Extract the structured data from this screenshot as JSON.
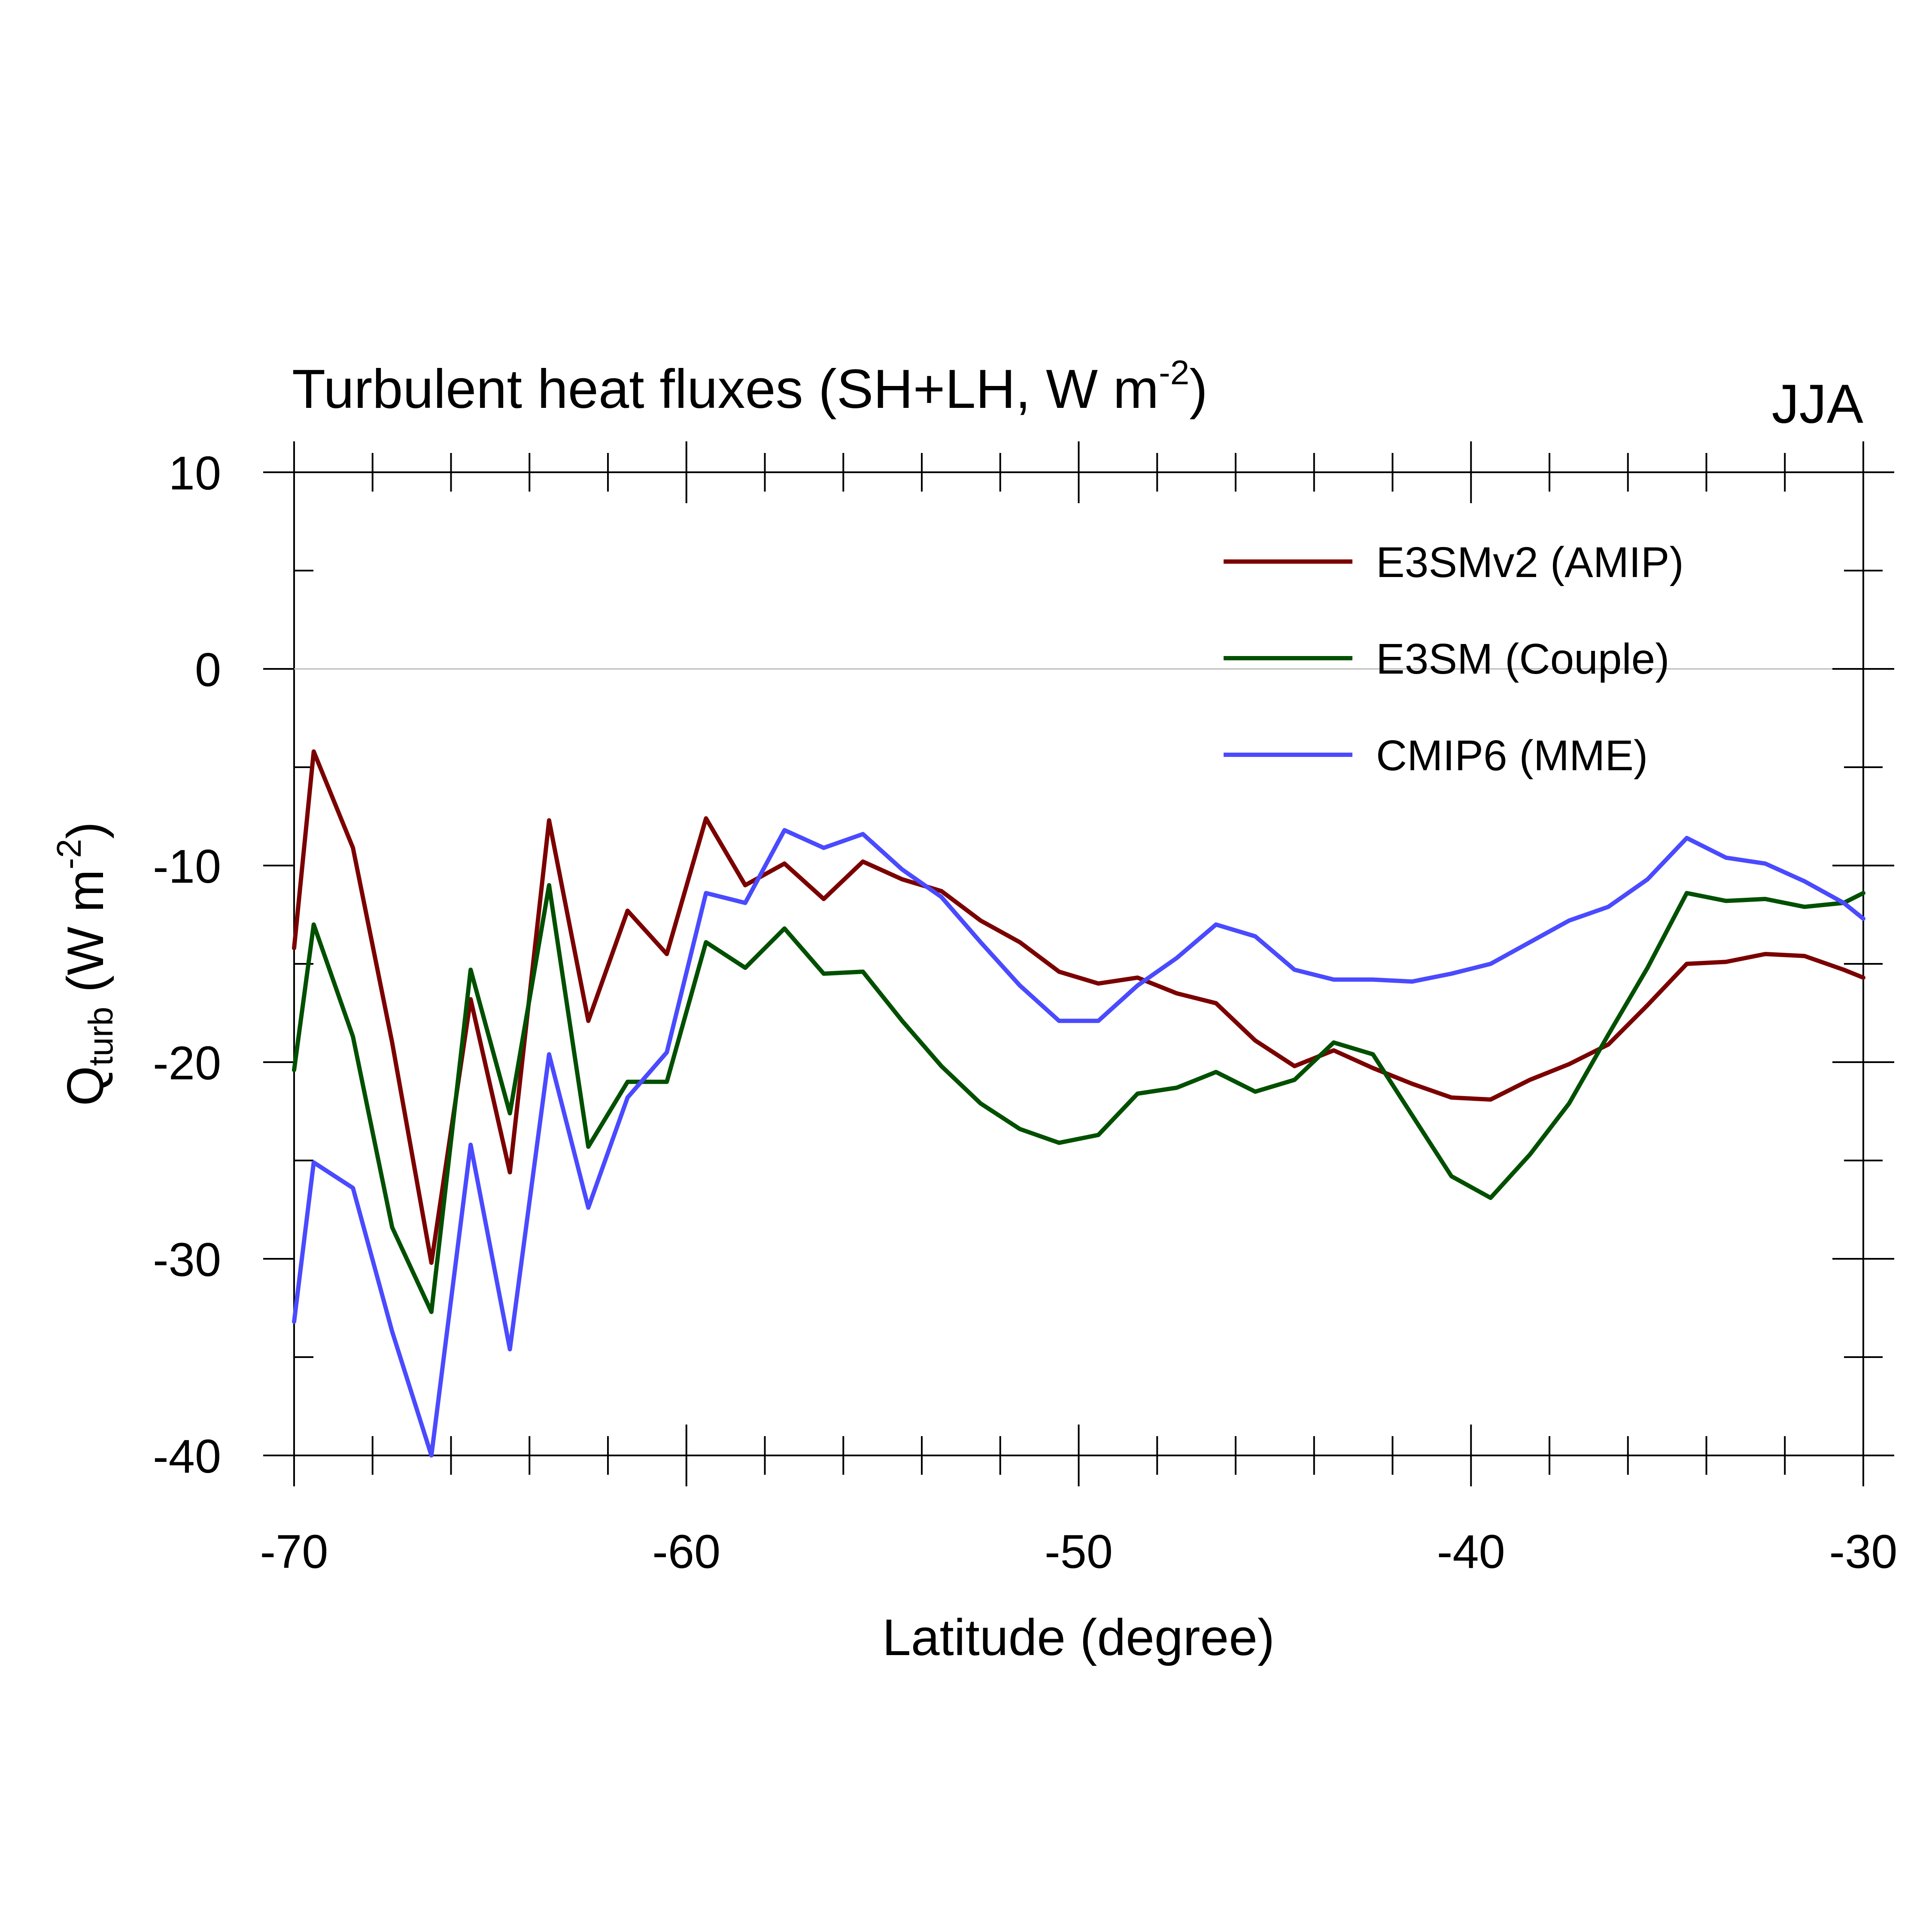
{
  "chart_data": {
    "type": "line",
    "title_main": "Turbulent heat fluxes (SH+LH, W m",
    "title_sup": "-2",
    "title_close": ")",
    "season": "JJA",
    "xlabel": "Latitude (degree)",
    "ylabel_main": "Q",
    "ylabel_sub": "turb",
    "ylabel_units": " (W m",
    "ylabel_sup": "-2",
    "ylabel_close": ")",
    "xlim": [
      -70,
      -30
    ],
    "ylim": [
      -40,
      10
    ],
    "xticks": [
      -70,
      -60,
      -50,
      -40,
      -30
    ],
    "yticks": [
      -40,
      -30,
      -20,
      -10,
      0,
      10
    ],
    "x_tick_labels": [
      "-70",
      "-60",
      "-50",
      "-40",
      "-30"
    ],
    "y_tick_labels": [
      "-40",
      "-30",
      "-20",
      "-10",
      "0",
      "10"
    ],
    "zero_line": true,
    "grid": false,
    "legend_position": "top-right",
    "x": [
      -70,
      -69.5,
      -68.5,
      -67.5,
      -66.5,
      -65.5,
      -64.5,
      -63.5,
      -62.5,
      -61.5,
      -60.5,
      -59.5,
      -58.5,
      -57.5,
      -56.5,
      -55.5,
      -54.5,
      -53.5,
      -52.5,
      -51.5,
      -50.5,
      -49.5,
      -48.5,
      -47.5,
      -46.5,
      -45.5,
      -44.5,
      -43.5,
      -42.5,
      -41.5,
      -40.5,
      -39.5,
      -38.5,
      -37.5,
      -36.5,
      -35.5,
      -34.5,
      -33.5,
      -32.5,
      -31.5,
      -30.5,
      -30
    ],
    "series": [
      {
        "name": "E3SMv2 (AMIP)",
        "color": "#7b0000",
        "values": [
          -14.2,
          -4.2,
          -9.1,
          -19.0,
          -30.2,
          -16.8,
          -25.6,
          -7.7,
          -17.9,
          -12.3,
          -14.5,
          -7.6,
          -11.0,
          -9.9,
          -11.7,
          -9.8,
          -10.7,
          -11.3,
          -12.8,
          -13.9,
          -15.4,
          -16.0,
          -15.7,
          -16.5,
          -17.0,
          -18.9,
          -20.2,
          -19.4,
          -20.3,
          -21.1,
          -21.8,
          -21.9,
          -20.9,
          -20.1,
          -19.1,
          -17.1,
          -15.0,
          -14.9,
          -14.5,
          -14.6,
          -15.3,
          -15.7
        ]
      },
      {
        "name": "E3SM (Couple)",
        "color": "#005000",
        "values": [
          -20.4,
          -13.0,
          -18.7,
          -28.4,
          -32.7,
          -15.3,
          -22.6,
          -11.0,
          -24.3,
          -21.0,
          -21.0,
          -13.9,
          -15.2,
          -13.2,
          -15.5,
          -15.4,
          -17.9,
          -20.2,
          -22.1,
          -23.4,
          -24.1,
          -23.7,
          -21.6,
          -21.3,
          -20.5,
          -21.5,
          -20.9,
          -19.0,
          -19.6,
          -22.7,
          -25.8,
          -26.9,
          -24.7,
          -22.1,
          -18.6,
          -15.2,
          -11.4,
          -11.8,
          -11.7,
          -12.1,
          -11.9,
          -11.4
        ]
      },
      {
        "name": "CMIP6 (MME)",
        "color": "#4a4aff",
        "values": [
          -33.2,
          -25.1,
          -26.4,
          -33.7,
          -40.0,
          -24.2,
          -34.6,
          -19.6,
          -27.4,
          -21.8,
          -19.5,
          -11.4,
          -11.9,
          -8.2,
          -9.1,
          -8.4,
          -10.2,
          -11.6,
          -13.9,
          -16.1,
          -17.9,
          -17.9,
          -16.1,
          -14.7,
          -13.0,
          -13.6,
          -15.3,
          -15.8,
          -15.8,
          -15.9,
          -15.5,
          -15.0,
          -13.9,
          -12.8,
          -12.1,
          -10.7,
          -8.6,
          -9.6,
          -9.9,
          -10.8,
          -11.9,
          -12.7
        ]
      }
    ]
  }
}
